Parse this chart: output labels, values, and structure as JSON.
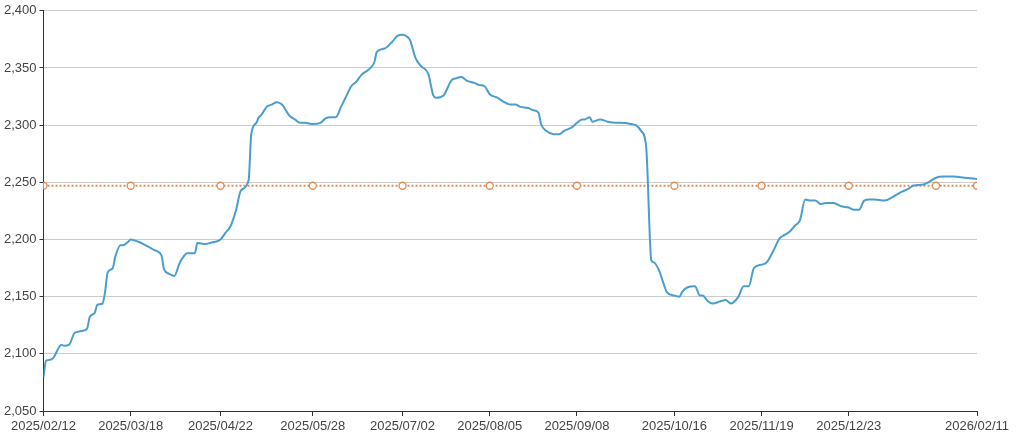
{
  "chart_data": {
    "type": "line",
    "grid": "y",
    "xlim": [
      "2025-02-12",
      "2026-02-11"
    ],
    "xticks": [
      {
        "value": "2025-02-12",
        "label": "2025/02/12"
      },
      {
        "value": "2025-03-18",
        "label": "2025/03/18"
      },
      {
        "value": "2025-04-22",
        "label": "2025/04/22"
      },
      {
        "value": "2025-05-28",
        "label": "2025/05/28"
      },
      {
        "value": "2025-07-02",
        "label": "2025/07/02"
      },
      {
        "value": "2025-08-05",
        "label": "2025/08/05"
      },
      {
        "value": "2025-09-08",
        "label": "2025/09/08"
      },
      {
        "value": "2025-10-16",
        "label": "2025/10/16"
      },
      {
        "value": "2025-11-19",
        "label": "2025/11/19"
      },
      {
        "value": "2025-12-23",
        "label": "2025/12/23"
      },
      {
        "value": "2026-02-11",
        "label": "2026/02/11"
      }
    ],
    "ylim": [
      2050,
      2400
    ],
    "yticks": [
      {
        "value": 2050,
        "label": "2,050"
      },
      {
        "value": 2100,
        "label": "2,100"
      },
      {
        "value": 2150,
        "label": "2,150"
      },
      {
        "value": 2200,
        "label": "2,200"
      },
      {
        "value": 2250,
        "label": "2,250"
      },
      {
        "value": 2300,
        "label": "2,300"
      },
      {
        "value": 2350,
        "label": "2,350"
      },
      {
        "value": 2400,
        "label": "2,400"
      }
    ],
    "series": [
      {
        "color": "#4a9ecf",
        "marker": "none",
        "x": [
          "2025-02-12",
          "2025-02-13",
          "2025-02-15",
          "2025-02-16",
          "2025-02-19",
          "2025-02-20",
          "2025-02-22",
          "2025-02-24",
          "2025-02-25",
          "2025-02-27",
          "2025-03-01",
          "2025-03-02",
          "2025-03-04",
          "2025-03-05",
          "2025-03-07",
          "2025-03-08",
          "2025-03-09",
          "2025-03-11",
          "2025-03-12",
          "2025-03-14",
          "2025-03-15",
          "2025-03-17",
          "2025-03-18",
          "2025-03-21",
          "2025-03-23",
          "2025-03-27",
          "2025-03-28",
          "2025-03-30",
          "2025-03-31",
          "2025-04-02",
          "2025-04-04",
          "2025-04-06",
          "2025-04-07",
          "2025-04-09",
          "2025-04-12",
          "2025-04-13",
          "2025-04-16",
          "2025-04-18",
          "2025-04-20",
          "2025-04-22",
          "2025-04-24",
          "2025-04-26",
          "2025-04-28",
          "2025-04-30",
          "2025-05-03",
          "2025-05-04",
          "2025-05-06",
          "2025-05-07",
          "2025-05-08",
          "2025-05-10",
          "2025-05-12",
          "2025-05-14",
          "2025-05-16",
          "2025-05-19",
          "2025-05-21",
          "2025-05-23",
          "2025-05-25",
          "2025-05-28",
          "2025-05-31",
          "2025-06-02",
          "2025-06-04",
          "2025-06-06",
          "2025-06-08",
          "2025-06-10",
          "2025-06-12",
          "2025-06-14",
          "2025-06-16",
          "2025-06-19",
          "2025-06-21",
          "2025-06-22",
          "2025-06-25",
          "2025-06-28",
          "2025-06-30",
          "2025-07-02",
          "2025-07-04",
          "2025-07-05",
          "2025-07-07",
          "2025-07-09",
          "2025-07-12",
          "2025-07-14",
          "2025-07-15",
          "2025-07-18",
          "2025-07-21",
          "2025-07-23",
          "2025-07-25",
          "2025-07-27",
          "2025-07-30",
          "2025-08-01",
          "2025-08-03",
          "2025-08-05",
          "2025-08-08",
          "2025-08-10",
          "2025-08-13",
          "2025-08-15",
          "2025-08-17",
          "2025-08-20",
          "2025-08-22",
          "2025-08-24",
          "2025-08-25",
          "2025-08-27",
          "2025-08-30",
          "2025-09-01",
          "2025-09-03",
          "2025-09-06",
          "2025-09-08",
          "2025-09-10",
          "2025-09-11",
          "2025-09-13",
          "2025-09-14",
          "2025-09-17",
          "2025-09-20",
          "2025-09-23",
          "2025-09-25",
          "2025-09-29",
          "2025-10-01",
          "2025-10-03",
          "2025-10-05",
          "2025-10-07",
          "2025-10-08",
          "2025-10-10",
          "2025-10-12",
          "2025-10-13",
          "2025-10-16",
          "2025-10-18",
          "2025-10-19",
          "2025-10-21",
          "2025-10-24",
          "2025-10-26",
          "2025-10-27",
          "2025-10-29",
          "2025-10-31",
          "2025-11-03",
          "2025-11-05",
          "2025-11-07",
          "2025-11-08",
          "2025-11-10",
          "2025-11-12",
          "2025-11-14",
          "2025-11-16",
          "2025-11-19",
          "2025-11-21",
          "2025-11-24",
          "2025-11-26",
          "2025-11-28",
          "2025-11-30",
          "2025-12-02",
          "2025-12-04",
          "2025-12-06",
          "2025-12-08",
          "2025-12-10",
          "2025-12-12",
          "2025-12-14",
          "2025-12-17",
          "2025-12-20",
          "2025-12-23",
          "2025-12-25",
          "2025-12-27",
          "2025-12-29",
          "2025-12-31",
          "2026-01-02",
          "2026-01-06",
          "2026-01-09",
          "2026-01-12",
          "2026-01-15",
          "2026-01-17",
          "2026-01-21",
          "2026-01-23",
          "2026-01-26",
          "2026-01-29",
          "2026-02-02",
          "2026-02-06",
          "2026-02-11"
        ],
        "values": [
          2080,
          2094,
          2095,
          2097,
          2108,
          2107,
          2108,
          2118,
          2119,
          2120,
          2122,
          2132,
          2136,
          2143,
          2144,
          2154,
          2171,
          2175,
          2185,
          2195,
          2195,
          2198,
          2200,
          2198,
          2196,
          2191,
          2190,
          2186,
          2174,
          2170,
          2168,
          2179,
          2183,
          2188,
          2188,
          2197,
          2196,
          2197,
          2198,
          2200,
          2206,
          2212,
          2225,
          2243,
          2252,
          2292,
          2302,
          2307,
          2309,
          2316,
          2318,
          2320,
          2318,
          2308,
          2305,
          2302,
          2302,
          2301,
          2302,
          2306,
          2307,
          2307,
          2316,
          2325,
          2334,
          2338,
          2344,
          2349,
          2355,
          2364,
          2367,
          2373,
          2378,
          2379,
          2377,
          2374,
          2359,
          2352,
          2345,
          2326,
          2324,
          2326,
          2339,
          2341,
          2342,
          2339,
          2337,
          2335,
          2334,
          2327,
          2324,
          2321,
          2318,
          2318,
          2316,
          2315,
          2313,
          2311,
          2301,
          2295,
          2292,
          2292,
          2295,
          2298,
          2302,
          2305,
          2305,
          2307,
          2303,
          2305,
          2303,
          2302,
          2302,
          2301,
          2300,
          2295,
          2281,
          2182,
          2180,
          2173,
          2160,
          2154,
          2151,
          2150,
          2154,
          2158,
          2159,
          2151,
          2151,
          2146,
          2144,
          2146,
          2147,
          2144,
          2145,
          2150,
          2159,
          2159,
          2175,
          2178,
          2180,
          2192,
          2201,
          2204,
          2207,
          2212,
          2217,
          2235,
          2234,
          2234,
          2231,
          2232,
          2232,
          2229,
          2228,
          2226,
          2226,
          2234,
          2235,
          2235,
          2234,
          2237,
          2241,
          2244,
          2247,
          2248,
          2250,
          2254,
          2255,
          2255,
          2254,
          2253
        ]
      },
      {
        "color": "#e58a50",
        "line_style": "dotted",
        "marker": "circle",
        "x": [
          "2025-02-12",
          "2025-03-18",
          "2025-04-22",
          "2025-05-28",
          "2025-07-02",
          "2025-08-05",
          "2025-09-08",
          "2025-10-16",
          "2025-11-19",
          "2025-12-23",
          "2026-01-26",
          "2026-02-11"
        ],
        "values": [
          2247,
          2247,
          2247,
          2247,
          2247,
          2247,
          2247,
          2247,
          2247,
          2247,
          2247,
          2247
        ]
      }
    ]
  }
}
